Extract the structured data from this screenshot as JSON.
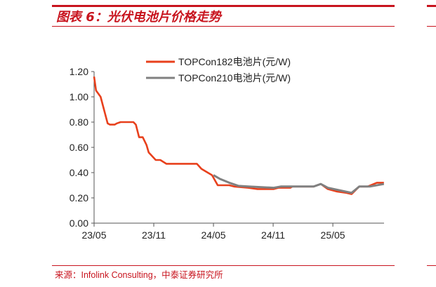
{
  "header": {
    "title": "图表 6：光伏电池片价格走势"
  },
  "footer": {
    "source": "来源：Infolink Consulting，中泰证券研究所"
  },
  "colors": {
    "accent": "#c8141e",
    "series1": "#e8401c",
    "series2": "#808080"
  },
  "chart_data": {
    "type": "line",
    "title": "",
    "xlabel": "",
    "ylabel": "",
    "ylim": [
      0,
      1.2
    ],
    "yticks": [
      "0.00",
      "0.20",
      "0.40",
      "0.60",
      "0.80",
      "1.00",
      "1.20"
    ],
    "xticks": [
      "23/05",
      "23/11",
      "24/05",
      "24/11",
      "25/05"
    ],
    "xtick_dates": [
      "2023-05-01",
      "2023-11-01",
      "2024-05-01",
      "2024-11-01",
      "2025-05-01"
    ],
    "grid": false,
    "legend_position": "top-center",
    "series": [
      {
        "name": "TOPCon182电池片(元/W)",
        "color": "#e8401c",
        "points": [
          [
            "2023-05-01",
            1.16
          ],
          [
            "2023-05-07",
            1.05
          ],
          [
            "2023-05-21",
            1.0
          ],
          [
            "2023-06-12",
            0.79
          ],
          [
            "2023-06-19",
            0.78
          ],
          [
            "2023-07-03",
            0.78
          ],
          [
            "2023-07-10",
            0.79
          ],
          [
            "2023-07-21",
            0.8
          ],
          [
            "2023-08-30",
            0.8
          ],
          [
            "2023-09-07",
            0.78
          ],
          [
            "2023-09-17",
            0.68
          ],
          [
            "2023-09-28",
            0.68
          ],
          [
            "2023-10-09",
            0.62
          ],
          [
            "2023-10-16",
            0.56
          ],
          [
            "2023-11-07",
            0.5
          ],
          [
            "2023-11-21",
            0.5
          ],
          [
            "2023-12-09",
            0.47
          ],
          [
            "2024-03-11",
            0.47
          ],
          [
            "2024-03-25",
            0.43
          ],
          [
            "2024-04-27",
            0.38
          ],
          [
            "2024-05-14",
            0.3
          ],
          [
            "2024-06-19",
            0.3
          ],
          [
            "2024-07-03",
            0.29
          ],
          [
            "2024-08-16",
            0.28
          ],
          [
            "2024-09-14",
            0.27
          ],
          [
            "2024-11-03",
            0.27
          ],
          [
            "2024-11-17",
            0.28
          ],
          [
            "2024-12-23",
            0.28
          ],
          [
            "2024-12-30",
            0.29
          ],
          [
            "2025-03-03",
            0.29
          ],
          [
            "2025-03-25",
            0.31
          ],
          [
            "2025-04-16",
            0.27
          ],
          [
            "2025-05-14",
            0.25
          ],
          [
            "2025-06-12",
            0.24
          ],
          [
            "2025-06-28",
            0.23
          ],
          [
            "2025-07-21",
            0.29
          ],
          [
            "2025-08-16",
            0.29
          ],
          [
            "2025-09-14",
            0.32
          ],
          [
            "2025-10-05",
            0.32
          ]
        ]
      },
      {
        "name": "TOPCon210电池片(元/W)",
        "color": "#808080",
        "points": [
          [
            "2024-05-01",
            0.38
          ],
          [
            "2024-05-21",
            0.35
          ],
          [
            "2024-06-19",
            0.32
          ],
          [
            "2024-07-17",
            0.295
          ],
          [
            "2024-08-16",
            0.29
          ],
          [
            "2024-11-03",
            0.28
          ],
          [
            "2024-11-24",
            0.29
          ],
          [
            "2025-03-03",
            0.29
          ],
          [
            "2025-03-25",
            0.31
          ],
          [
            "2025-04-16",
            0.28
          ],
          [
            "2025-06-28",
            0.24
          ],
          [
            "2025-07-21",
            0.29
          ],
          [
            "2025-08-23",
            0.29
          ],
          [
            "2025-10-05",
            0.31
          ]
        ]
      }
    ]
  }
}
